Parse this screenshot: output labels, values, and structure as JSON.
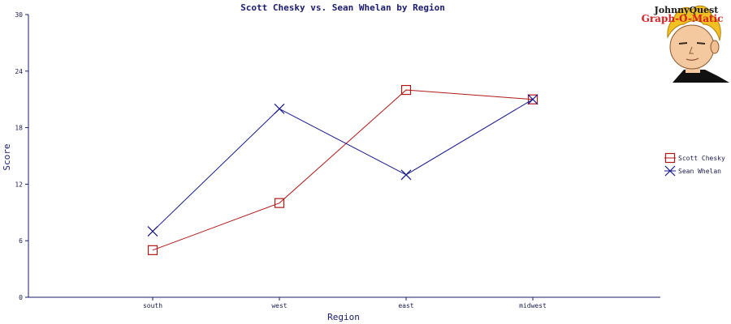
{
  "chart_data": {
    "type": "line",
    "title": "Scott Chesky vs. Sean Whelan by Region",
    "xlabel": "Region",
    "ylabel": "Score",
    "categories": [
      "south",
      "west",
      "east",
      "midwest"
    ],
    "ylim": [
      0,
      30
    ],
    "yticks": [
      0,
      6,
      12,
      18,
      24,
      30
    ],
    "grid": false,
    "legend": "right",
    "series": [
      {
        "name": "Scott Chesky",
        "values": [
          5,
          10,
          22,
          21
        ],
        "color": "#b01818",
        "marker": "square"
      },
      {
        "name": "Sean Whelan",
        "values": [
          7,
          20,
          13,
          21
        ],
        "color": "#18188a",
        "marker": "x"
      }
    ]
  },
  "logo": {
    "line1": "JohnnyQuest",
    "line2": "Graph-O-Matic"
  }
}
